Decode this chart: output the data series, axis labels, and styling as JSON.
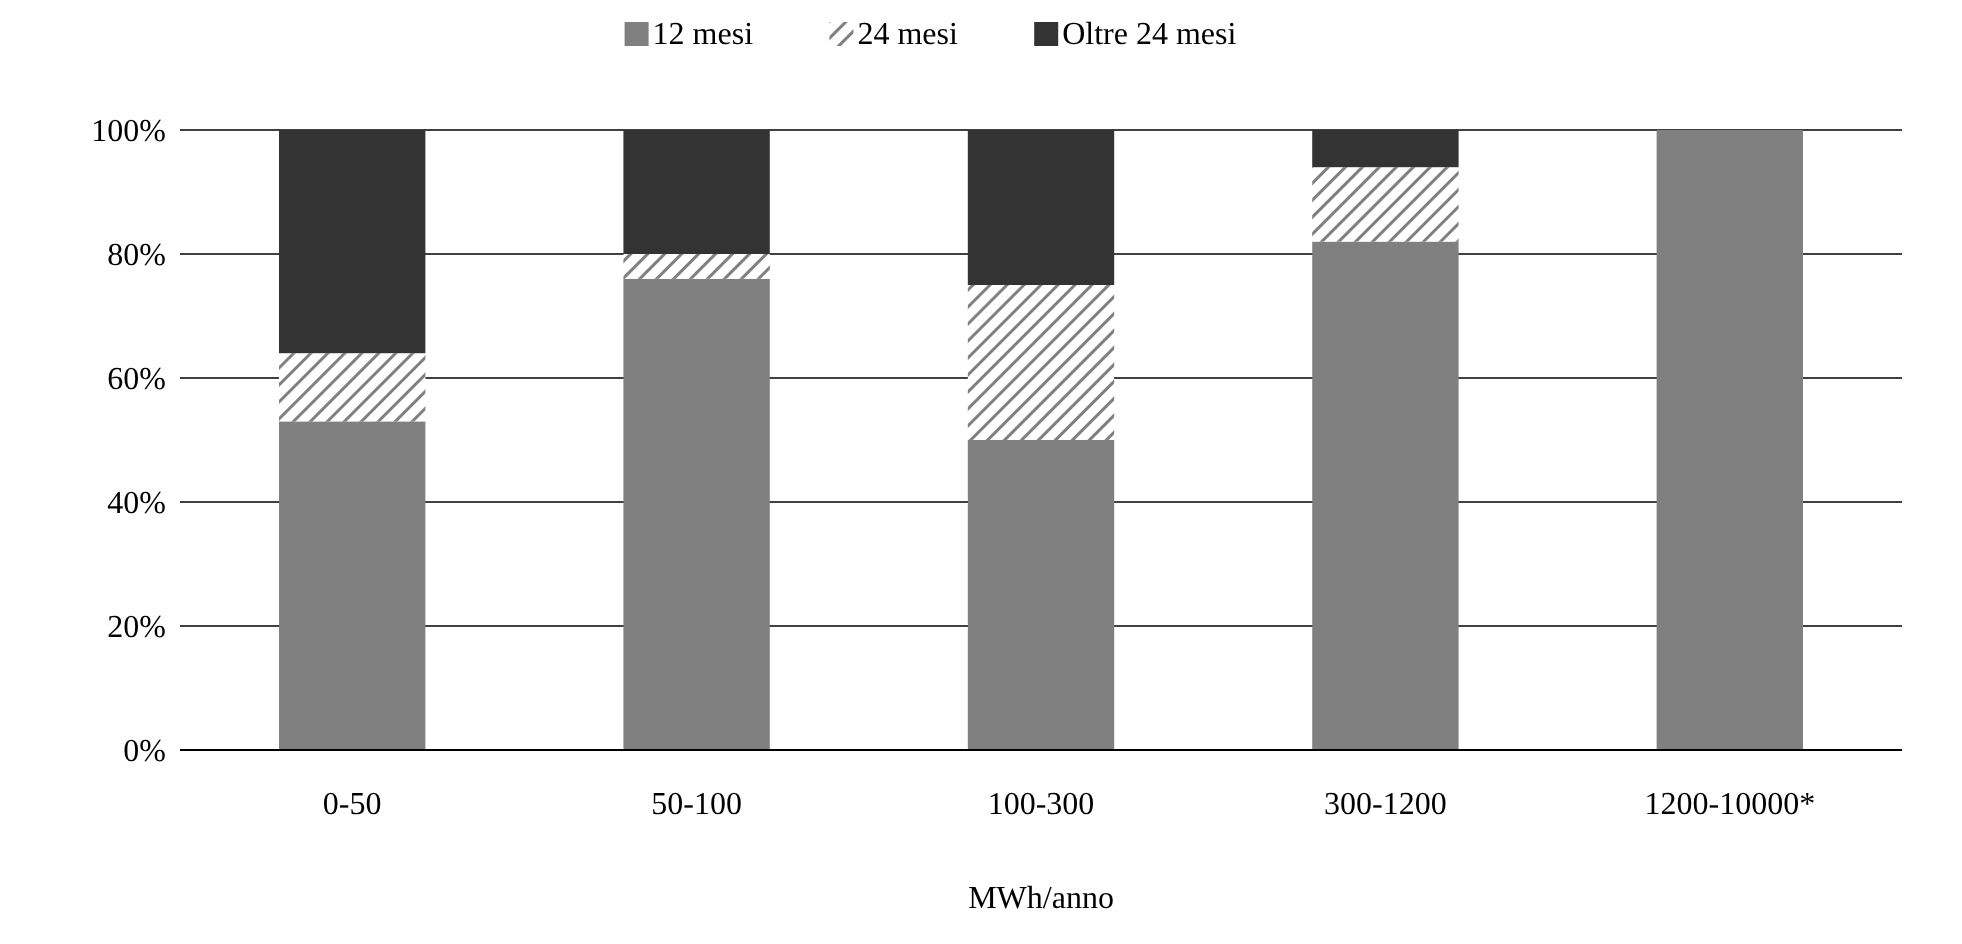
{
  "chart_data": {
    "type": "bar",
    "stacked": true,
    "xlabel": "MWh/anno",
    "categories": [
      "0-50",
      "50-100",
      "100-300",
      "300-1200",
      "1200-10000*"
    ],
    "series": [
      {
        "name": "12 mesi",
        "color": "#808080",
        "values": [
          53,
          76,
          50,
          82,
          100
        ]
      },
      {
        "name": "24 mesi",
        "color": "#808080",
        "values": [
          11,
          4,
          25,
          12,
          0
        ]
      },
      {
        "name": "Oltre 24 mesi",
        "color": "#333333",
        "values": [
          36,
          20,
          25,
          6,
          0
        ]
      }
    ],
    "ylim": [
      0,
      100
    ],
    "yticks": [
      {
        "value": 0,
        "label": "0%"
      },
      {
        "value": 20,
        "label": "20%"
      },
      {
        "value": 40,
        "label": "40%"
      },
      {
        "value": 60,
        "label": "60%"
      },
      {
        "value": 80,
        "label": "80%"
      },
      {
        "value": 100,
        "label": "100%"
      }
    ],
    "grid": "y",
    "legend": "top"
  }
}
